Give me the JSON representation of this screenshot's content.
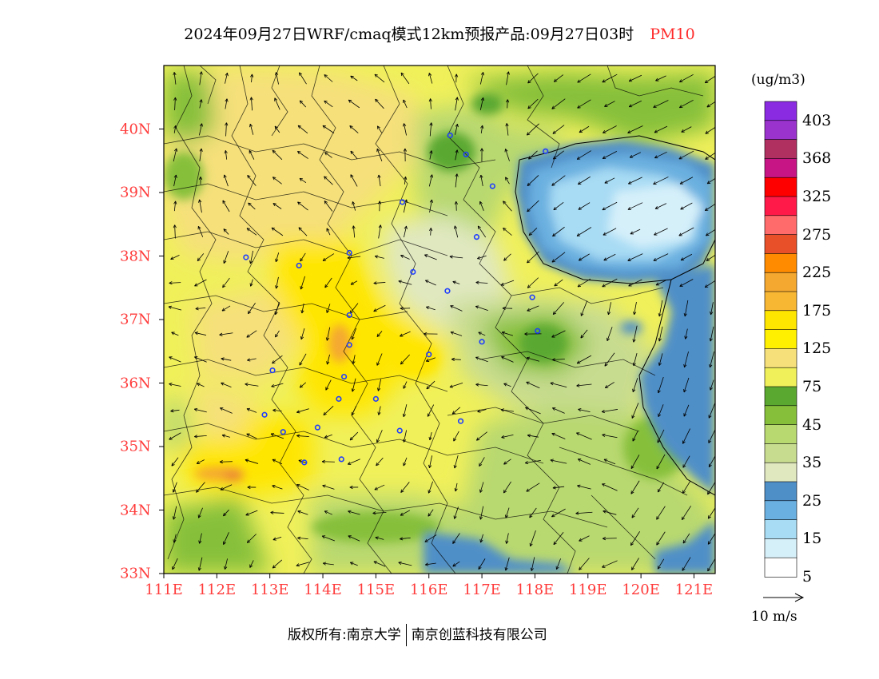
{
  "title": {
    "main": "2024年09月27日WRF/cmaq模式12km预报产品:09月27日03时",
    "variable": "PM10"
  },
  "colorbar": {
    "unit": "(ug/m3)",
    "labels": [
      "403",
      "368",
      "325",
      "275",
      "225",
      "175",
      "125",
      "75",
      "45",
      "35",
      "25",
      "15",
      "5"
    ],
    "colors": [
      "#8a2be2",
      "#9a32cd",
      "#b03060",
      "#c71585",
      "#ff0000",
      "#ff1a4a",
      "#ff6a6a",
      "#e8502a",
      "#ff8c00",
      "#f4a830",
      "#f7b733",
      "#ffe600",
      "#fff000",
      "#f5e07a",
      "#f0f05a",
      "#5aa830",
      "#86c03a",
      "#b8d870",
      "#c8dc90",
      "#e0e8c0",
      "#4f8fc8",
      "#6ab0e0",
      "#a8dcf4",
      "#d6f0fa",
      "#ffffff"
    ]
  },
  "axes": {
    "lat_labels": [
      "40N",
      "39N",
      "38N",
      "37N",
      "36N",
      "35N",
      "34N",
      "33N"
    ],
    "lat_values": [
      40,
      39,
      38,
      37,
      36,
      35,
      34,
      33
    ],
    "lon_labels": [
      "111E",
      "112E",
      "113E",
      "114E",
      "115E",
      "116E",
      "117E",
      "118E",
      "119E",
      "120E",
      "121E"
    ],
    "lon_values": [
      111,
      112,
      113,
      114,
      115,
      116,
      117,
      118,
      119,
      120,
      121
    ],
    "lat_range": [
      33,
      41
    ],
    "lon_range": [
      111,
      121.4
    ]
  },
  "wind_legend": {
    "label": "10 m/s"
  },
  "footer": {
    "left": "版权所有:南京大学",
    "right": "南京创蓝科技有限公司"
  },
  "monitor_sites": [
    [
      116.4,
      39.9
    ],
    [
      116.7,
      39.6
    ],
    [
      117.2,
      39.1
    ],
    [
      118.2,
      39.65
    ],
    [
      115.5,
      38.85
    ],
    [
      116.9,
      38.3
    ],
    [
      112.55,
      37.98
    ],
    [
      113.55,
      37.85
    ],
    [
      114.5,
      38.05
    ],
    [
      115.7,
      37.75
    ],
    [
      116.35,
      37.45
    ],
    [
      114.5,
      37.07
    ],
    [
      117.95,
      37.35
    ],
    [
      118.05,
      36.82
    ],
    [
      117.0,
      36.65
    ],
    [
      114.5,
      36.6
    ],
    [
      116.0,
      36.45
    ],
    [
      114.4,
      36.1
    ],
    [
      113.05,
      36.2
    ],
    [
      114.3,
      35.75
    ],
    [
      115.0,
      35.75
    ],
    [
      112.9,
      35.5
    ],
    [
      113.25,
      35.23
    ],
    [
      113.9,
      35.3
    ],
    [
      115.45,
      35.25
    ],
    [
      116.6,
      35.4
    ],
    [
      114.35,
      34.8
    ],
    [
      113.65,
      34.75
    ]
  ]
}
